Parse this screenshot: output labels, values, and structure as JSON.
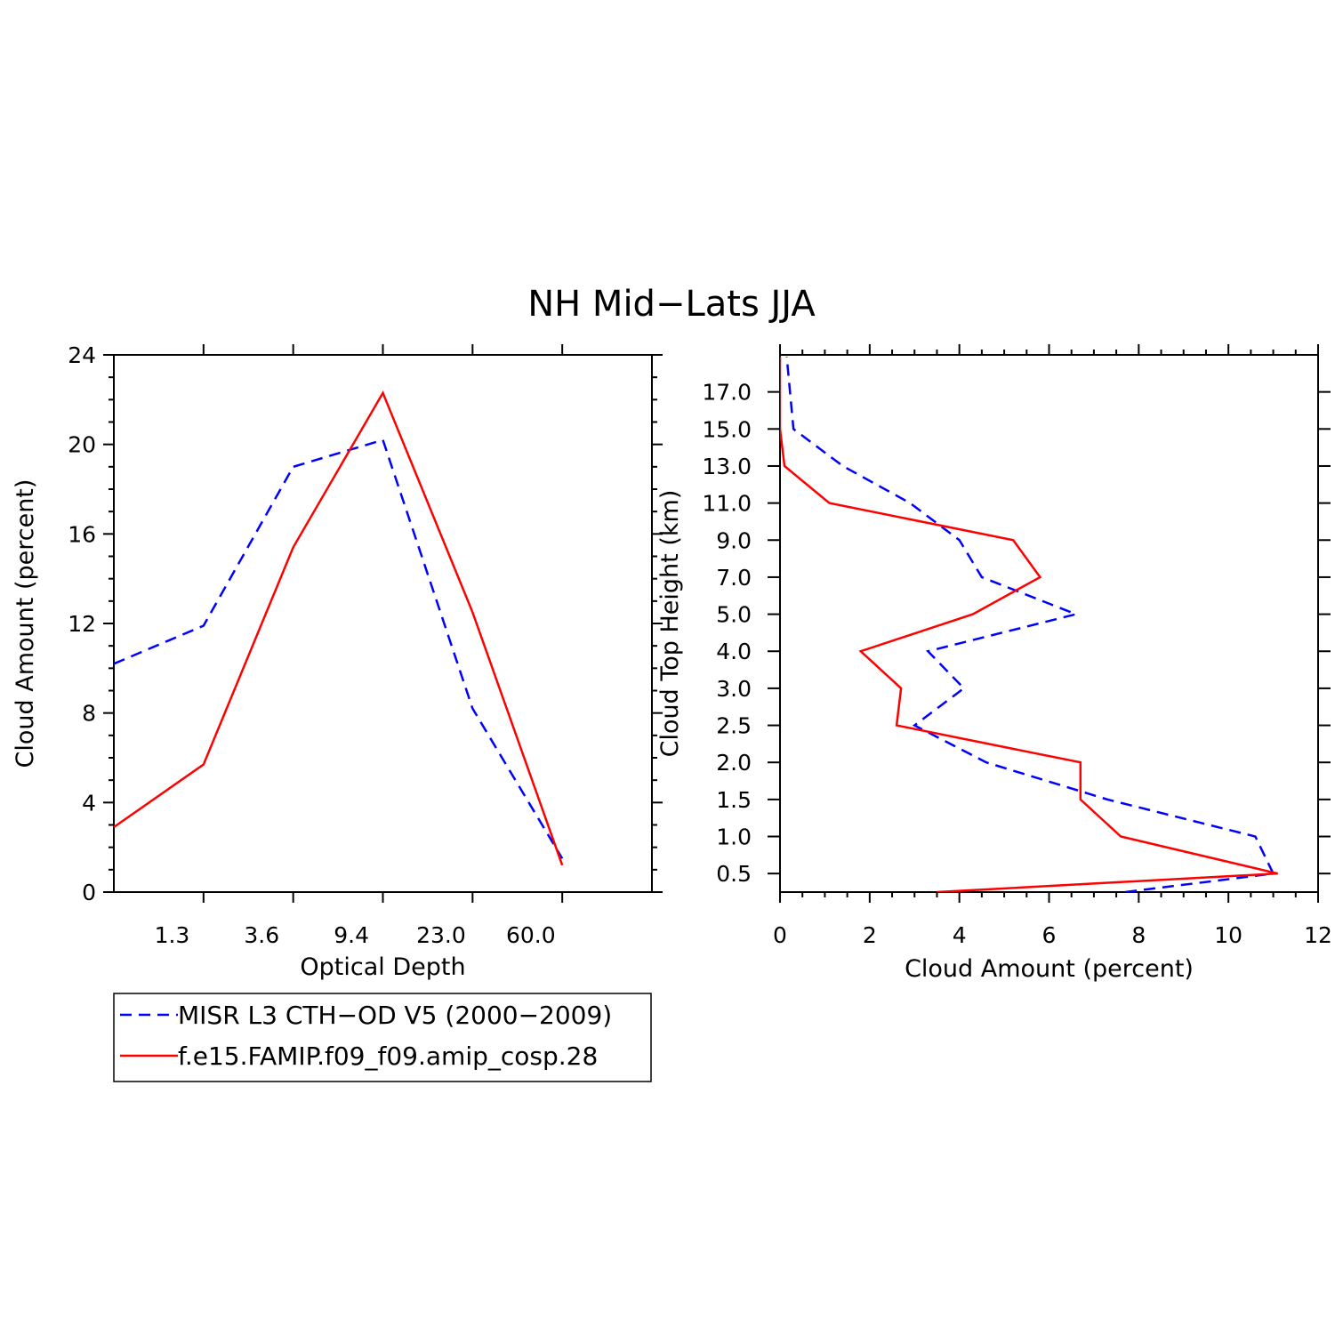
{
  "title": "NH Mid−Lats JJA",
  "colors": {
    "obs": "#0000ff",
    "model": "#ff0000",
    "axis": "#000000"
  },
  "legend": [
    {
      "label": "MISR L3 CTH−OD V5 (2000−2009)",
      "color": "#0000ff",
      "style": "dashed"
    },
    {
      "label": "f.e15.FAMIP.f09_f09.amip_cosp.28",
      "color": "#ff0000",
      "style": "solid"
    }
  ],
  "chart_data": [
    {
      "type": "line",
      "xlabel": "Optical Depth",
      "ylabel": "Cloud Amount (percent)",
      "x_ticklabels": [
        "1.3",
        "3.6",
        "9.4",
        "23.0",
        "60.0"
      ],
      "y_ticks": [
        0,
        4,
        8,
        12,
        16,
        20,
        24
      ],
      "ylim": [
        0,
        24
      ],
      "x_bins": 6,
      "series": [
        {
          "name": "MISR L3 CTH−OD V5 (2000−2009)",
          "values": [
            10.2,
            11.9,
            19.0,
            20.2,
            8.2,
            1.5
          ]
        },
        {
          "name": "f.e15.FAMIP.f09_f09.amip_cosp.28",
          "values": [
            2.9,
            5.7,
            15.4,
            22.3,
            12.5,
            1.2
          ]
        }
      ]
    },
    {
      "type": "line",
      "xlabel": "Cloud Amount (percent)",
      "ylabel": "Cloud Top Height (km)",
      "x_ticks": [
        0,
        2,
        4,
        6,
        8,
        10,
        12
      ],
      "xlim": [
        0,
        12
      ],
      "y_ticklabels": [
        "0.5",
        "1.0",
        "1.5",
        "2.0",
        "2.5",
        "3.0",
        "4.0",
        "5.0",
        "7.0",
        "9.0",
        "11.0",
        "13.0",
        "15.0",
        "17.0"
      ],
      "series": [
        {
          "name": "MISR L3 CTH−OD V5 (2000−2009)",
          "values": [
            7.7,
            11.0,
            10.6,
            7.3,
            4.6,
            3.0,
            4.1,
            3.3,
            6.6,
            4.5,
            4.0,
            2.9,
            1.4,
            0.3,
            0.15
          ]
        },
        {
          "name": "f.e15.FAMIP.f09_f09.amip_cosp.28",
          "values": [
            3.5,
            11.1,
            7.6,
            6.7,
            6.7,
            2.6,
            2.7,
            1.8,
            4.3,
            5.8,
            5.2,
            1.1,
            0.1,
            0.0,
            0.0
          ]
        }
      ]
    }
  ]
}
